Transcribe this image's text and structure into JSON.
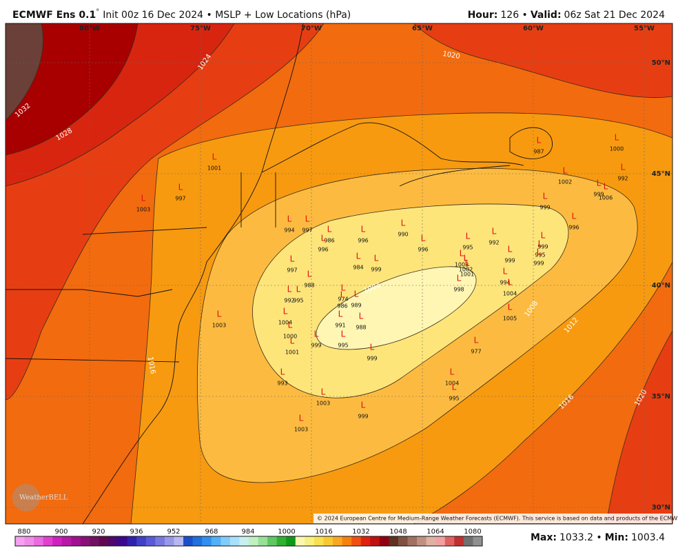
{
  "header": {
    "title": "ECMWF Ens 0.1",
    "degree": "°",
    "subtitle": "Init 00z 16 Dec 2024 • MSLP + Low Locations (hPa)",
    "hour_label": "Hour:",
    "hour": "126 •",
    "valid_label": "Valid:",
    "valid": "06z Sat 21 Dec 2024"
  },
  "map": {
    "longitudes": [
      "80°W",
      "75°W",
      "70°W",
      "65°W",
      "60°W",
      "55°W"
    ],
    "latitudes": [
      "50°N",
      "45°N",
      "40°N",
      "35°N",
      "30°N"
    ],
    "contour_labels": [
      1032,
      1028,
      1024,
      1020,
      1004,
      1008,
      1012,
      1016,
      1020,
      1016
    ],
    "low_symbol": "L",
    "lows": [
      1001,
      1003,
      997,
      994,
      997,
      986,
      996,
      996,
      990,
      996,
      995,
      992,
      999,
      995,
      999,
      999,
      997,
      984,
      999,
      1003,
      1002,
      1001,
      988,
      998,
      994,
      1004,
      992,
      995,
      974,
      986,
      989,
      1004,
      991,
      988,
      1005,
      1003,
      1000,
      1001,
      999,
      995,
      999,
      977,
      993,
      1004,
      995,
      1003,
      999,
      1003,
      987,
      1000,
      992,
      1002,
      999,
      1006,
      999,
      996
    ],
    "credit": "© 2024 European Centre for Medium-Range Weather Forecasts (ECMWF). This service is based on data and products of the ECMWF.",
    "logo": "WeatherBELL"
  },
  "colorbar": {
    "labels": [
      880,
      900,
      920,
      936,
      952,
      968,
      984,
      1000,
      1016,
      1032,
      1048,
      1064,
      1080
    ]
  },
  "footer": {
    "max_label": "Max:",
    "max": "1033.2 •",
    "min_label": "Min:",
    "min": "1003.4"
  }
}
